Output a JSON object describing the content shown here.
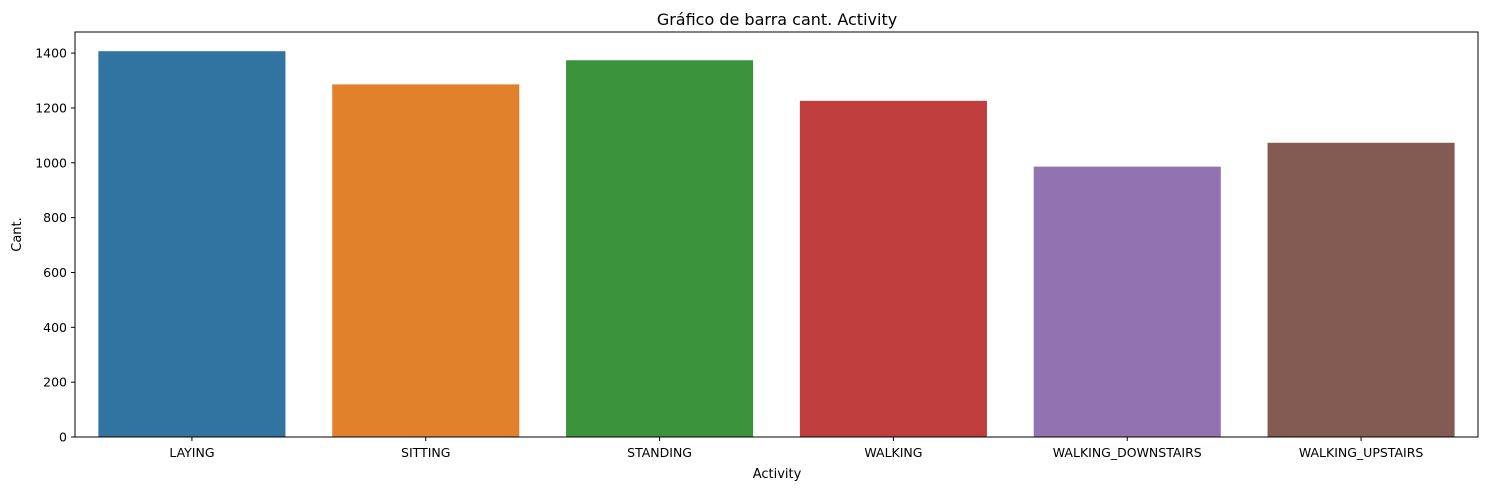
{
  "chart_data": {
    "type": "bar",
    "title": "Gráfico de barra cant. Activity",
    "xlabel": "Activity",
    "ylabel": "Cant.",
    "categories": [
      "LAYING",
      "SITTING",
      "STANDING",
      "WALKING",
      "WALKING_DOWNSTAIRS",
      "WALKING_UPSTAIRS"
    ],
    "values": [
      1407,
      1286,
      1374,
      1226,
      986,
      1073
    ],
    "colors": [
      "#3274a1",
      "#e1812c",
      "#3a923a",
      "#c03d3e",
      "#9372b2",
      "#845b53"
    ],
    "ylim": [
      0,
      1477
    ],
    "yticks": [
      0,
      200,
      400,
      600,
      800,
      1000,
      1200,
      1400
    ],
    "grid": false,
    "legend": false
  }
}
